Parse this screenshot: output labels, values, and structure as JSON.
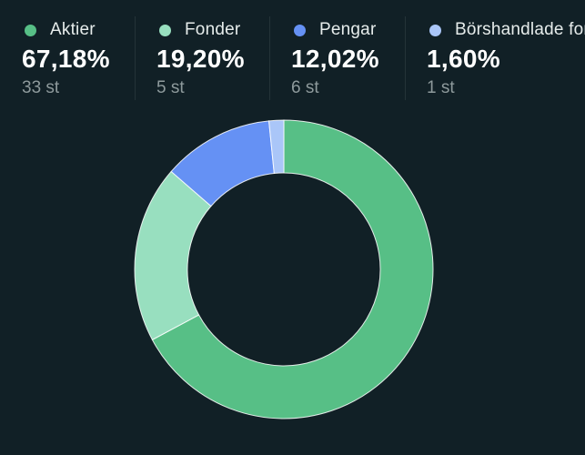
{
  "legend": {
    "items": [
      {
        "label": "Aktier",
        "percent": "67,18%",
        "count": "33 st",
        "color": "#57bf86"
      },
      {
        "label": "Fonder",
        "percent": "19,20%",
        "count": "5 st",
        "color": "#98dfbf"
      },
      {
        "label": "Pengar",
        "percent": "12,02%",
        "count": "6 st",
        "color": "#6591f4"
      },
      {
        "label": "Börshandlade fonder",
        "percent": "1,60%",
        "count": "1 st",
        "color": "#aac6f8"
      }
    ]
  },
  "chart_data": {
    "type": "pie",
    "variant": "donut",
    "categories": [
      "Aktier",
      "Fonder",
      "Pengar",
      "Börshandlade fonder"
    ],
    "values": [
      67.18,
      19.2,
      12.02,
      1.6
    ],
    "colors": [
      "#57bf86",
      "#98dfbf",
      "#6591f4",
      "#aac6f8"
    ],
    "start": "top",
    "direction": "clockwise"
  }
}
